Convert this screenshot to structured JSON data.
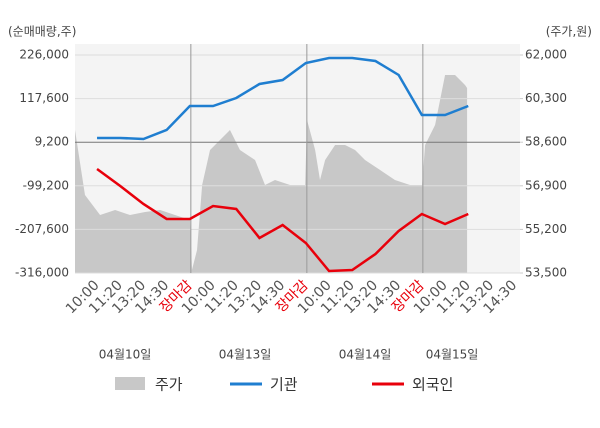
{
  "chart_data": {
    "type": "line",
    "y_label": "(순매매량,주)",
    "y2_label": "(주가,원)",
    "categories": [
      "10:00",
      "11:20",
      "13:20",
      "14:30",
      "장마감",
      "10:00",
      "11:20",
      "13:20",
      "14:30",
      "장마감",
      "10:00",
      "11:20",
      "13:20",
      "14:30",
      "장마감",
      "10:00",
      "11:20",
      "13:20",
      "14:30"
    ],
    "dates": [
      "04월10일",
      "04월13일",
      "04월14일",
      "04월15일"
    ],
    "xlim": [
      -0.95,
      18.23
    ],
    "ylim": [
      -316000,
      226000
    ],
    "yticks": [
      {
        "value": -316000,
        "label": "-316,000"
      },
      {
        "value": -207600,
        "label": "-207,600"
      },
      {
        "value": -99200,
        "label": "-99,200"
      },
      {
        "value": 9200,
        "label": "9,200"
      },
      {
        "value": 117600,
        "label": "117,600"
      },
      {
        "value": 226000,
        "label": "226,000"
      }
    ],
    "y2lim": [
      53500,
      62000
    ],
    "y2ticks": [
      {
        "value": 53500,
        "label": "53,500"
      },
      {
        "value": 55200,
        "label": "55,200"
      },
      {
        "value": 56900,
        "label": "56,900"
      },
      {
        "value": 58600,
        "label": "58,600"
      },
      {
        "value": 60300,
        "label": "60,300"
      },
      {
        "value": 62000,
        "label": "62,000"
      }
    ],
    "grid": true,
    "series": [
      {
        "name": "주가",
        "color": "#c8c8c8",
        "axis": "y2",
        "x": [
          -0.95,
          -0.52,
          0.13,
          0.78,
          1.42,
          2.07,
          2.72,
          3.36,
          4.01,
          4.09,
          4.31,
          4.53,
          4.87,
          5.3,
          5.73,
          6.16,
          6.81,
          7.24,
          7.67,
          8.32,
          8.97,
          9.05,
          9.4,
          9.61,
          9.83,
          10.26,
          10.69,
          11.12,
          11.55,
          12.2,
          12.84,
          13.49,
          14.01,
          14.14,
          14.57,
          15.0,
          15.43,
          15.86,
          15.95
        ],
        "values": [
          59075,
          56540,
          55760,
          55955,
          55760,
          55877,
          55955,
          55760,
          55565,
          53615,
          54395,
          56930,
          58295,
          58685,
          59075,
          58295,
          57905,
          56930,
          57125,
          56930,
          56930,
          59465,
          58295,
          57125,
          57905,
          58490,
          58490,
          58295,
          57905,
          57515,
          57125,
          56930,
          56930,
          58490,
          59270,
          61220,
          61220,
          60830,
          60713
        ]
      },
      {
        "name": "기관",
        "color": "#1f7ed0",
        "values": [
          19700,
          19700,
          17200,
          39600,
          99200,
          99200,
          119100,
          153900,
          163800,
          206100,
          218500,
          218500,
          211100,
          176300,
          76800,
          76800,
          99200,
          null,
          null
        ]
      },
      {
        "name": "외국인",
        "color": "#e8000b",
        "values": [
          -57400,
          -99700,
          -144400,
          -181700,
          -181700,
          -149400,
          -156800,
          -228900,
          -196600,
          -241400,
          -311000,
          -308500,
          -268700,
          -211500,
          -169300,
          -194200,
          -169300,
          null,
          null
        ]
      }
    ]
  }
}
